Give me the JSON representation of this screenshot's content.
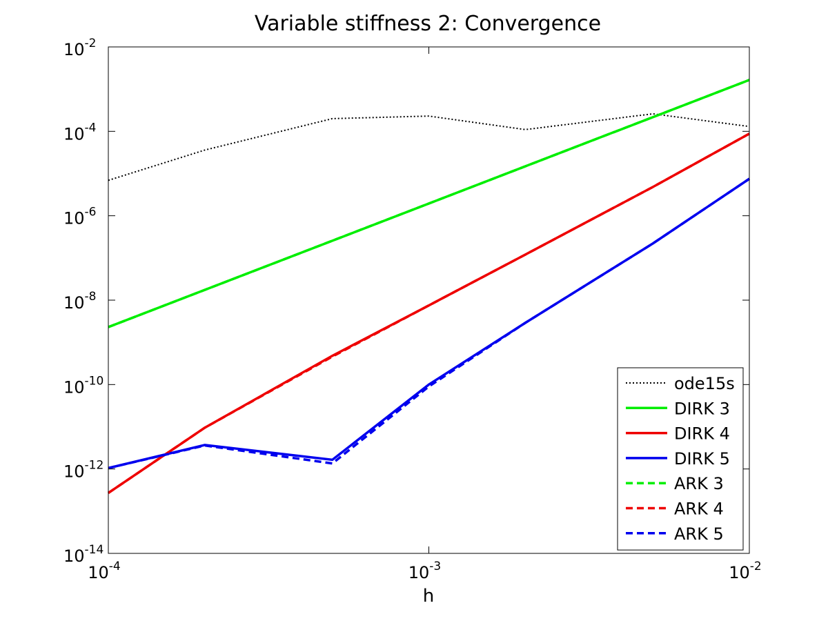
{
  "chart_data": {
    "type": "line",
    "title": "Variable stiffness 2: Convergence",
    "xlabel": "h",
    "ylabel": "",
    "xscale": "log",
    "yscale": "log",
    "xlim": [
      0.0001,
      0.01
    ],
    "ylim": [
      1e-14,
      0.01
    ],
    "grid": false,
    "legend_position": "bottom-right",
    "x_ticks": [
      {
        "value": 0.0001,
        "base": "10",
        "exp": "-4"
      },
      {
        "value": 0.001,
        "base": "10",
        "exp": "-3"
      },
      {
        "value": 0.01,
        "base": "10",
        "exp": "-2"
      }
    ],
    "y_ticks": [
      {
        "value": 1e-14,
        "base": "10",
        "exp": "-14"
      },
      {
        "value": 1e-12,
        "base": "10",
        "exp": "-12"
      },
      {
        "value": 1e-10,
        "base": "10",
        "exp": "-10"
      },
      {
        "value": 1e-08,
        "base": "10",
        "exp": "-8"
      },
      {
        "value": 1e-06,
        "base": "10",
        "exp": "-6"
      },
      {
        "value": 0.0001,
        "base": "10",
        "exp": "-4"
      },
      {
        "value": 0.01,
        "base": "10",
        "exp": "-2"
      }
    ],
    "series": [
      {
        "name": "ode15s",
        "color": "#000000",
        "style": "dotted",
        "x": [
          0.0001,
          0.0002,
          0.0005,
          0.001,
          0.002,
          0.005,
          0.01
        ],
        "y": [
          6.9e-06,
          3.6e-05,
          0.0002,
          0.00023,
          0.00011,
          0.00026,
          0.00013
        ]
      },
      {
        "name": "DIRK 3",
        "color": "#00ee00",
        "style": "solid",
        "x": [
          0.0001,
          0.01
        ],
        "y": [
          2.3e-09,
          0.00165
        ]
      },
      {
        "name": "DIRK 4",
        "color": "#ee0000",
        "style": "solid",
        "x": [
          0.0001,
          0.0002,
          0.0005,
          0.001,
          0.002,
          0.005,
          0.01
        ],
        "y": [
          2.7e-13,
          9.5e-12,
          4.8e-10,
          7.5e-09,
          1.2e-07,
          4.8e-06,
          8.8e-05
        ]
      },
      {
        "name": "DIRK 5",
        "color": "#0000ee",
        "style": "solid",
        "x": [
          0.0001,
          0.0002,
          0.0005,
          0.001,
          0.002,
          0.005,
          0.01
        ],
        "y": [
          1.05e-12,
          3.7e-12,
          1.65e-12,
          1e-10,
          2.9e-09,
          2.2e-07,
          7.5e-06
        ]
      },
      {
        "name": "ARK 3",
        "color": "#00ee00",
        "style": "dashed",
        "x": [
          0.0001,
          0.01
        ],
        "y": [
          2.3e-09,
          0.00165
        ]
      },
      {
        "name": "ARK 4",
        "color": "#ee0000",
        "style": "dashed",
        "x": [
          0.0001,
          0.0002,
          0.0005,
          0.001,
          0.002,
          0.005,
          0.01
        ],
        "y": [
          2.7e-13,
          9.5e-12,
          4.6e-10,
          7.5e-09,
          1.2e-07,
          4.8e-06,
          8.8e-05
        ]
      },
      {
        "name": "ARK 5",
        "color": "#0000ee",
        "style": "dashed",
        "x": [
          0.0001,
          0.0002,
          0.0005,
          0.001,
          0.002,
          0.005,
          0.01
        ],
        "y": [
          1.05e-12,
          3.6e-12,
          1.35e-12,
          9e-11,
          2.9e-09,
          2.2e-07,
          7.5e-06
        ]
      }
    ]
  }
}
